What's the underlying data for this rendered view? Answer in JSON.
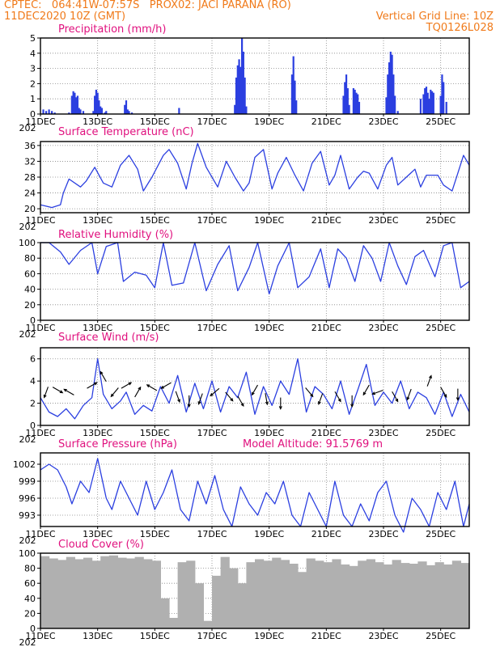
{
  "header": {
    "line1_left": "CPTEC:   064:41W-07:57S   PROX02: JACI PARANA (RO)",
    "line2_left": "11DEC2020 10Z (GMT)",
    "line2_right": "Vertical Grid Line: 10Z",
    "line3_right": "TQ0126L028"
  },
  "colors": {
    "header": "#f07a1a",
    "title": "#e0107e",
    "line": "#2b3fe0",
    "bar": "#2b3fe0",
    "cloud": "#b0b0b0",
    "grid": "#888888"
  },
  "x_tick_labels": [
    "11DEC",
    "13DEC",
    "15DEC",
    "17DEC",
    "19DEC",
    "21DEC",
    "23DEC",
    "25DEC"
  ],
  "year_fragment": "202",
  "chart_data": [
    {
      "type": "bar",
      "title": "Precipitation (mm/h)",
      "ylim": [
        0,
        5
      ],
      "yticks": [
        "0",
        "1",
        "2",
        "3",
        "4",
        "5"
      ],
      "x_days": [
        0.1,
        0.2,
        0.3,
        0.4,
        0.5,
        1.0,
        1.1,
        1.15,
        1.2,
        1.25,
        1.3,
        1.35,
        1.4,
        1.5,
        1.85,
        1.9,
        1.95,
        2.0,
        2.05,
        2.1,
        2.15,
        2.25,
        2.3,
        2.95,
        3.0,
        3.05,
        3.1,
        3.2,
        4.85,
        6.8,
        6.85,
        6.9,
        6.95,
        7.0,
        7.05,
        7.1,
        7.15,
        7.2,
        8.8,
        8.85,
        8.9,
        8.95,
        10.6,
        10.65,
        10.7,
        10.75,
        10.8,
        10.95,
        11.0,
        11.05,
        11.1,
        11.15,
        12.1,
        12.15,
        12.2,
        12.25,
        12.3,
        12.35,
        12.4,
        12.5,
        13.3,
        13.4,
        13.45,
        13.5,
        13.55,
        13.6,
        13.65,
        13.7,
        13.75,
        14.0,
        14.05,
        14.1,
        14.2
      ],
      "values": [
        0.3,
        0.2,
        0.3,
        0.2,
        0.1,
        0.1,
        1.2,
        1.5,
        1.4,
        1.1,
        1.2,
        0.4,
        0.3,
        0.2,
        0.2,
        1.2,
        1.6,
        1.4,
        0.9,
        0.5,
        0.4,
        0.1,
        0.2,
        0.6,
        0.9,
        0.3,
        0.2,
        0.1,
        0.4,
        0.6,
        2.4,
        3.2,
        3.6,
        3.1,
        5.0,
        4.1,
        2.4,
        0.5,
        2.6,
        3.8,
        2.2,
        0.9,
        1.2,
        2.1,
        2.6,
        1.7,
        0.6,
        1.7,
        1.6,
        1.4,
        1.3,
        0.8,
        1.1,
        2.6,
        3.4,
        4.1,
        3.9,
        2.6,
        1.2,
        0.2,
        1.0,
        1.3,
        1.7,
        1.8,
        1.4,
        1.0,
        1.6,
        1.5,
        1.4,
        1.2,
        2.6,
        2.1,
        0.8
      ]
    },
    {
      "type": "line",
      "title": "Surface Temperature (nC)",
      "ylim": [
        19,
        37
      ],
      "yticks": [
        "20",
        "24",
        "28",
        "32",
        "36"
      ],
      "x_days": [
        0,
        0.4,
        0.7,
        0.8,
        1.0,
        1.4,
        1.6,
        1.9,
        2.2,
        2.5,
        2.8,
        3.1,
        3.4,
        3.6,
        3.9,
        4.3,
        4.5,
        4.8,
        5.1,
        5.3,
        5.5,
        5.8,
        6.2,
        6.5,
        6.8,
        7.1,
        7.3,
        7.5,
        7.8,
        8.1,
        8.3,
        8.6,
        8.9,
        9.2,
        9.5,
        9.8,
        10.1,
        10.3,
        10.5,
        10.8,
        11.1,
        11.3,
        11.5,
        11.8,
        12.1,
        12.3,
        12.5,
        12.8,
        13.1,
        13.3,
        13.5,
        13.9,
        14.1,
        14.4,
        14.6,
        14.8,
        15.0
      ],
      "values": [
        21,
        20.3,
        21,
        24,
        27.5,
        25.5,
        27,
        30.5,
        26.5,
        25.5,
        31,
        33.5,
        30,
        24.5,
        28,
        33.5,
        35,
        31.5,
        25,
        31.5,
        36.5,
        30.5,
        25.5,
        32,
        28,
        24.5,
        26.5,
        33,
        35,
        25,
        29,
        33,
        28.5,
        24.5,
        31.5,
        34.5,
        26,
        28.5,
        33.5,
        25,
        28,
        29.5,
        29,
        25,
        31,
        33,
        26,
        28,
        30,
        25.5,
        28.5,
        28.5,
        26,
        24.5,
        29,
        33.5,
        31
      ]
    },
    {
      "type": "line",
      "title": "Relative Humidity (%)",
      "ylim": [
        0,
        100
      ],
      "yticks": [
        "0",
        "20",
        "40",
        "60",
        "80",
        "100"
      ],
      "x_days": [
        0,
        0.3,
        0.7,
        1.0,
        1.4,
        1.8,
        2.0,
        2.3,
        2.7,
        2.9,
        3.3,
        3.7,
        4.0,
        4.3,
        4.6,
        5.0,
        5.4,
        5.8,
        6.2,
        6.6,
        6.9,
        7.3,
        7.6,
        8.0,
        8.3,
        8.7,
        9.0,
        9.4,
        9.8,
        10.1,
        10.4,
        10.7,
        11.0,
        11.3,
        11.6,
        11.9,
        12.2,
        12.5,
        12.8,
        13.1,
        13.4,
        13.8,
        14.1,
        14.4,
        14.7,
        15.0
      ],
      "values": [
        100,
        100,
        88,
        72,
        90,
        100,
        60,
        95,
        100,
        50,
        62,
        58,
        42,
        100,
        45,
        48,
        100,
        38,
        72,
        96,
        38,
        68,
        100,
        34,
        70,
        100,
        42,
        56,
        92,
        42,
        92,
        80,
        50,
        96,
        80,
        50,
        100,
        70,
        46,
        82,
        90,
        56,
        96,
        100,
        42,
        50
      ]
    },
    {
      "type": "line",
      "title": "Surface Wind (m/s)",
      "ylim": [
        0,
        7
      ],
      "yticks": [
        "0",
        "2",
        "4",
        "6"
      ],
      "x_days": [
        0,
        0.3,
        0.6,
        0.9,
        1.2,
        1.5,
        1.8,
        2.0,
        2.2,
        2.5,
        2.8,
        3.0,
        3.3,
        3.6,
        3.9,
        4.2,
        4.5,
        4.8,
        5.1,
        5.4,
        5.7,
        6.0,
        6.3,
        6.6,
        6.9,
        7.2,
        7.5,
        7.8,
        8.1,
        8.4,
        8.7,
        9.0,
        9.3,
        9.6,
        9.9,
        10.2,
        10.5,
        10.8,
        11.1,
        11.4,
        11.7,
        12.0,
        12.3,
        12.6,
        12.9,
        13.2,
        13.5,
        13.8,
        14.1,
        14.4,
        14.7,
        15.0
      ],
      "values": [
        2.5,
        1.2,
        0.8,
        1.5,
        0.6,
        1.8,
        2.5,
        6.0,
        2.8,
        1.5,
        2.2,
        3.0,
        1.0,
        1.8,
        1.3,
        3.5,
        2.0,
        4.5,
        1.2,
        3.8,
        1.5,
        4.0,
        1.2,
        3.5,
        2.5,
        4.8,
        1.0,
        3.5,
        1.8,
        4.0,
        2.8,
        6.0,
        1.2,
        3.5,
        2.8,
        1.5,
        4.0,
        1.0,
        3.2,
        5.5,
        1.8,
        3.0,
        2.0,
        4.0,
        1.5,
        3.0,
        2.5,
        1.0,
        3.0,
        0.8,
        2.8,
        1.2
      ]
    },
    {
      "type": "line",
      "title": "Surface Pressure (hPa)",
      "subtitle": "Model Altitude: 91.5769 m",
      "ylim": [
        991,
        1004
      ],
      "yticks": [
        "993",
        "996",
        "999",
        "1002"
      ],
      "x_days": [
        0,
        0.3,
        0.6,
        0.9,
        1.1,
        1.4,
        1.7,
        2.0,
        2.3,
        2.5,
        2.8,
        3.1,
        3.4,
        3.7,
        4.0,
        4.3,
        4.6,
        4.9,
        5.2,
        5.5,
        5.8,
        6.1,
        6.4,
        6.7,
        7.0,
        7.3,
        7.6,
        7.9,
        8.2,
        8.5,
        8.8,
        9.1,
        9.4,
        9.7,
        10.0,
        10.3,
        10.6,
        10.9,
        11.2,
        11.5,
        11.8,
        12.1,
        12.4,
        12.7,
        13.0,
        13.3,
        13.6,
        13.9,
        14.2,
        14.5,
        14.8,
        15.0
      ],
      "values": [
        1001,
        1002,
        1001,
        998,
        995,
        999,
        997,
        1003,
        996,
        994,
        999,
        996,
        993,
        999,
        994,
        997,
        1001,
        994,
        992,
        999,
        995,
        1000,
        994,
        991,
        998,
        995,
        993,
        997,
        995,
        999,
        993,
        991,
        997,
        994,
        991,
        999,
        993,
        991,
        995,
        992,
        997,
        999,
        993,
        990,
        996,
        994,
        991,
        997,
        994,
        999,
        991,
        995
      ]
    },
    {
      "type": "bar",
      "title": "Cloud Cover (%)",
      "ylim": [
        0,
        100
      ],
      "yticks": [
        "0",
        "20",
        "40",
        "60",
        "80",
        "100"
      ],
      "x_days": [
        0,
        0.3,
        0.6,
        0.9,
        1.2,
        1.5,
        1.8,
        2.1,
        2.4,
        2.7,
        3.0,
        3.3,
        3.6,
        3.9,
        4.2,
        4.5,
        4.8,
        5.1,
        5.4,
        5.7,
        6.0,
        6.3,
        6.6,
        6.9,
        7.2,
        7.5,
        7.8,
        8.1,
        8.4,
        8.7,
        9.0,
        9.3,
        9.6,
        9.9,
        10.2,
        10.5,
        10.8,
        11.1,
        11.4,
        11.7,
        12.0,
        12.3,
        12.6,
        12.9,
        13.2,
        13.5,
        13.8,
        14.1,
        14.4,
        14.7
      ],
      "values": [
        96,
        93,
        91,
        95,
        92,
        94,
        90,
        96,
        97,
        94,
        93,
        95,
        92,
        90,
        40,
        14,
        88,
        90,
        60,
        10,
        70,
        95,
        80,
        60,
        88,
        92,
        90,
        94,
        91,
        86,
        75,
        93,
        90,
        88,
        92,
        85,
        83,
        90,
        92,
        88,
        85,
        91,
        87,
        86,
        89,
        84,
        88,
        85,
        90,
        87
      ]
    }
  ],
  "wind_arrows": [
    {
      "day": 0.2,
      "y": 3.0,
      "dir_deg": 200
    },
    {
      "day": 0.6,
      "y": 3.2,
      "dir_deg": 120
    },
    {
      "day": 1.0,
      "y": 3.0,
      "dir_deg": 300
    },
    {
      "day": 1.8,
      "y": 3.6,
      "dir_deg": 60
    },
    {
      "day": 2.2,
      "y": 4.4,
      "dir_deg": 330
    },
    {
      "day": 2.6,
      "y": 3.0,
      "dir_deg": 220
    },
    {
      "day": 3.0,
      "y": 3.6,
      "dir_deg": 60
    },
    {
      "day": 3.4,
      "y": 3.0,
      "dir_deg": 30
    },
    {
      "day": 3.9,
      "y": 3.4,
      "dir_deg": 300
    },
    {
      "day": 4.4,
      "y": 3.6,
      "dir_deg": 240
    },
    {
      "day": 4.8,
      "y": 2.6,
      "dir_deg": 160
    },
    {
      "day": 5.2,
      "y": 2.2,
      "dir_deg": 180
    },
    {
      "day": 5.6,
      "y": 2.4,
      "dir_deg": 200
    },
    {
      "day": 6.1,
      "y": 3.0,
      "dir_deg": 230
    },
    {
      "day": 6.6,
      "y": 2.6,
      "dir_deg": 140
    },
    {
      "day": 7.0,
      "y": 2.2,
      "dir_deg": 150
    },
    {
      "day": 7.5,
      "y": 3.2,
      "dir_deg": 210
    },
    {
      "day": 7.9,
      "y": 2.4,
      "dir_deg": 170
    },
    {
      "day": 8.4,
      "y": 2.0,
      "dir_deg": 180
    },
    {
      "day": 9.4,
      "y": 3.0,
      "dir_deg": 140
    },
    {
      "day": 9.8,
      "y": 2.4,
      "dir_deg": 200
    },
    {
      "day": 10.4,
      "y": 2.6,
      "dir_deg": 150
    },
    {
      "day": 10.9,
      "y": 2.2,
      "dir_deg": 180
    },
    {
      "day": 11.4,
      "y": 3.2,
      "dir_deg": 210
    },
    {
      "day": 11.8,
      "y": 3.0,
      "dir_deg": 250
    },
    {
      "day": 12.4,
      "y": 2.6,
      "dir_deg": 150
    },
    {
      "day": 12.9,
      "y": 2.8,
      "dir_deg": 200
    },
    {
      "day": 13.6,
      "y": 4.0,
      "dir_deg": 20
    },
    {
      "day": 14.1,
      "y": 3.0,
      "dir_deg": 150
    },
    {
      "day": 14.6,
      "y": 2.8,
      "dir_deg": 180
    }
  ]
}
